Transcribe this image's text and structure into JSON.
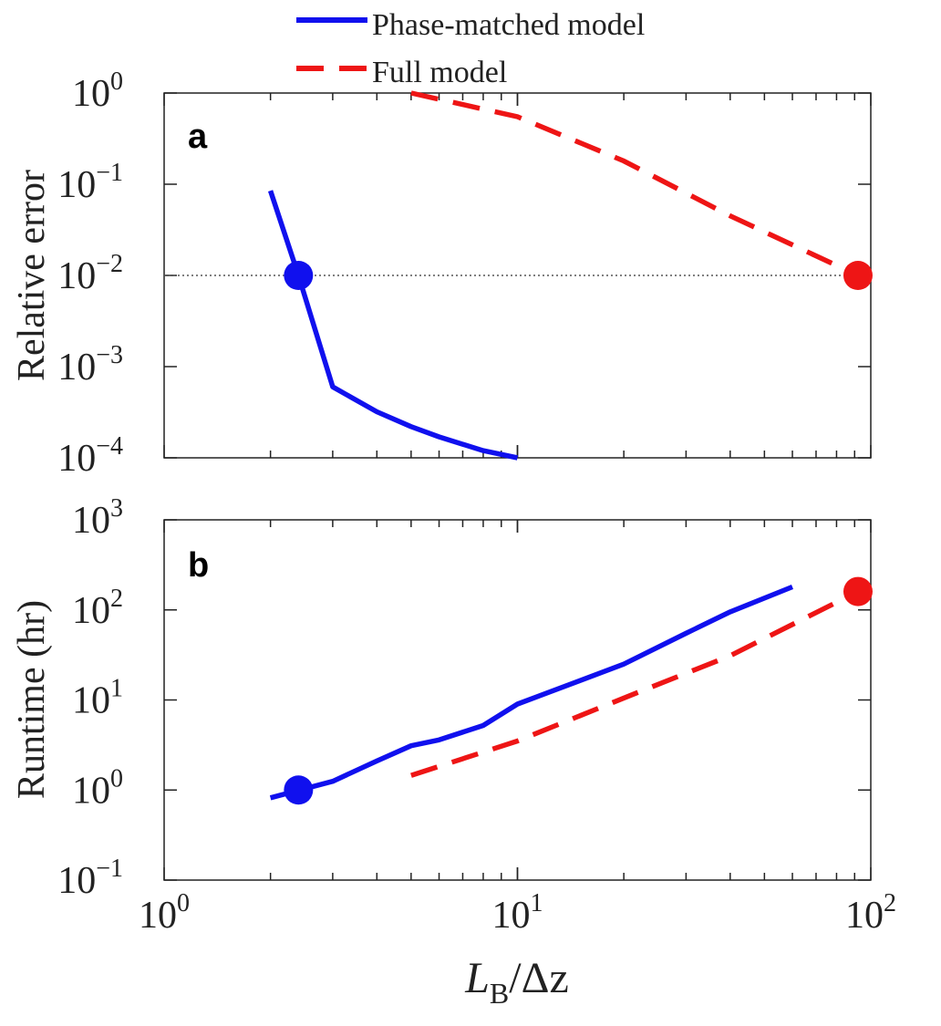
{
  "legend": {
    "phase_label": "Phase-matched model",
    "full_label": "Full model"
  },
  "colors": {
    "phase": "#1010ee",
    "full": "#ee1515",
    "axis": "#222222",
    "ref": "#555555"
  },
  "chart_data": [
    {
      "type": "line",
      "panel_label": "a",
      "ylabel": "Relative error",
      "xscale": "log",
      "yscale": "log",
      "xlim": [
        1,
        100
      ],
      "ylim": [
        0.0001,
        1
      ],
      "ytick_mantissa": "10",
      "ytick_exponents": [
        "0",
        "−1",
        "−2",
        "−3",
        "−4"
      ],
      "reference_line": 0.01,
      "series": [
        {
          "name": "Phase-matched model",
          "style": "solid",
          "color": "#1010ee",
          "x": [
            2,
            2.4,
            3,
            4,
            5,
            6,
            8,
            10
          ],
          "y": [
            0.085,
            0.01,
            0.0006,
            0.00032,
            0.00022,
            0.00017,
            0.00012,
            0.0001
          ]
        },
        {
          "name": "Full model",
          "style": "dashed",
          "color": "#ee1515",
          "x": [
            5,
            10,
            20,
            40,
            92,
            100
          ],
          "y": [
            1.0,
            0.55,
            0.18,
            0.045,
            0.01,
            0.0085
          ]
        }
      ],
      "markers": [
        {
          "x": 2.4,
          "y": 0.01,
          "color": "#1010ee"
        },
        {
          "x": 92,
          "y": 0.01,
          "color": "#ee1515"
        }
      ]
    },
    {
      "type": "line",
      "panel_label": "b",
      "ylabel": "Runtime (hr)",
      "xscale": "log",
      "yscale": "log",
      "xlim": [
        1,
        100
      ],
      "ylim": [
        0.1,
        1000
      ],
      "ytick_mantissa": "10",
      "ytick_exponents": [
        "3",
        "2",
        "1",
        "0",
        "−1"
      ],
      "xtick_mantissa": "10",
      "xtick_exponents": [
        "0",
        "1",
        "2"
      ],
      "xlabel_main": "L",
      "xlabel_sub": "B",
      "xlabel_rest": "/Δz",
      "series": [
        {
          "name": "Phase-matched model",
          "style": "solid",
          "color": "#1010ee",
          "x": [
            2,
            3,
            4,
            5,
            6,
            8,
            10,
            20,
            30,
            40,
            60
          ],
          "y": [
            0.82,
            1.25,
            2.1,
            3.1,
            3.6,
            5.2,
            9.0,
            25,
            55,
            95,
            180
          ]
        },
        {
          "name": "Full model",
          "style": "dashed",
          "color": "#ee1515",
          "x": [
            5,
            10,
            20,
            40,
            92,
            100
          ],
          "y": [
            1.45,
            3.5,
            10.5,
            31,
            160,
            175
          ]
        }
      ],
      "markers": [
        {
          "x": 2.4,
          "y": 1.0,
          "color": "#1010ee"
        },
        {
          "x": 92,
          "y": 160,
          "color": "#ee1515"
        }
      ]
    }
  ]
}
